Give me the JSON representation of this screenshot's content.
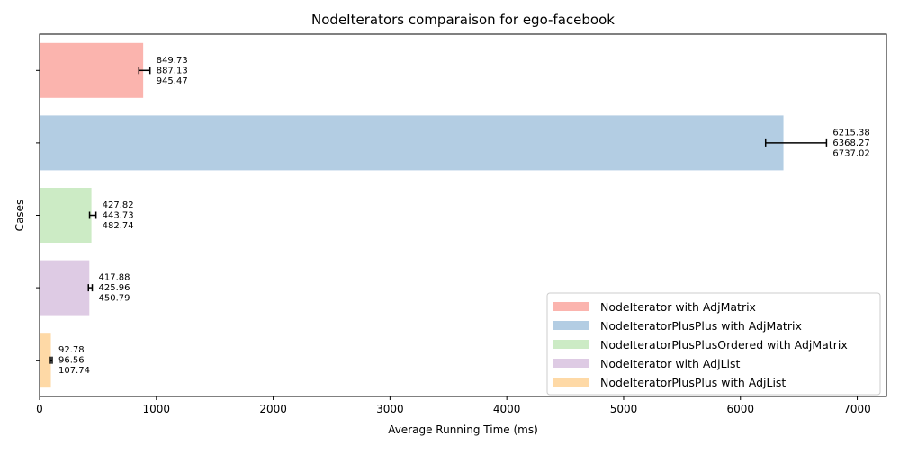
{
  "chart_data": {
    "type": "bar",
    "orientation": "horizontal",
    "title": "NodeIterators comparaison for ego-facebook",
    "xlabel": "Average Running Time (ms)",
    "ylabel": "Cases",
    "xlim": [
      0,
      7250
    ],
    "xticks": [
      0,
      1000,
      2000,
      3000,
      4000,
      5000,
      6000,
      7000
    ],
    "xtick_labels": [
      "0",
      "1000",
      "2000",
      "3000",
      "4000",
      "5000",
      "6000",
      "7000"
    ],
    "grid": false,
    "legend_position": "bottom-right",
    "series": [
      {
        "name": "NodeIterator with AdjMatrix",
        "color": "#fbb4ae",
        "value": 887.13,
        "min": 849.73,
        "max": 945.47,
        "labels": [
          "849.73",
          "887.13",
          "945.47"
        ]
      },
      {
        "name": "NodeIteratorPlusPlus with AdjMatrix",
        "color": "#b3cde3",
        "value": 6368.27,
        "min": 6215.38,
        "max": 6737.02,
        "labels": [
          "6215.38",
          "6368.27",
          "6737.02"
        ]
      },
      {
        "name": "NodeIteratorPlusPlusOrdered with AdjMatrix",
        "color": "#ccebc5",
        "value": 443.73,
        "min": 427.82,
        "max": 482.74,
        "labels": [
          "427.82",
          "443.73",
          "482.74"
        ]
      },
      {
        "name": "NodeIterator with AdjList",
        "color": "#decbe4",
        "value": 425.96,
        "min": 417.88,
        "max": 450.79,
        "labels": [
          "417.88",
          "425.96",
          "450.79"
        ]
      },
      {
        "name": "NodeIteratorPlusPlus with AdjList",
        "color": "#fed9a6",
        "value": 96.56,
        "min": 92.78,
        "max": 107.74,
        "labels": [
          "92.78",
          "96.56",
          "107.74"
        ]
      }
    ]
  }
}
